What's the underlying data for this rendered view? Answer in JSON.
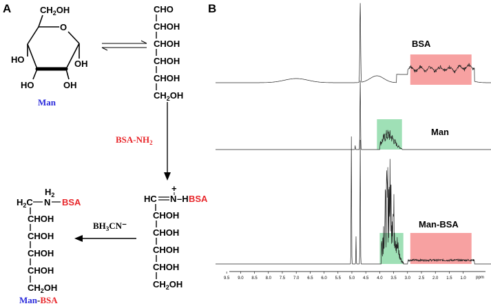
{
  "panels": {
    "a": "A",
    "b": "B"
  },
  "scheme": {
    "man_label": "Man",
    "ring_ch2oh": "CH",
    "ring_oh_sub": "2",
    "ring_oh_tail": "OH",
    "ring_o": "O",
    "ho_left": "HO",
    "oh_right": "OH",
    "ho_bottom": "HO",
    "oh_bottom": "OH",
    "open_chain": [
      "CHO",
      "CHOH",
      "CHOH",
      "CHOH",
      "CHOH",
      "CH2OH"
    ],
    "reagent_bsa_nh2": "BSA-NH",
    "reagent_sub": "2",
    "reagent_reduce": "BH",
    "reagent_reduce_sub": "3",
    "reagent_reduce_tail": "CN⁻",
    "imine_hc": "HC",
    "imine_n": "N",
    "imine_plus": "+",
    "imine_h": "H",
    "imine_bsa": "BSA",
    "imine_chain": [
      "CHOH",
      "CHOH",
      "CHOH",
      "CHOH",
      "CH2OH"
    ],
    "amine_h2c": "H",
    "amine_h2c_sub": "2",
    "amine_h2c_tail": "C",
    "amine_n": "N",
    "amine_h2": "H",
    "amine_h2_sub": "2",
    "amine_bsa": "BSA",
    "amine_chain": [
      "CHOH",
      "CHOH",
      "CHOH",
      "CHOH",
      "CH2OH"
    ],
    "product_man": "Man",
    "product_dash": "-",
    "product_bsa": "BSA"
  },
  "chart_data": {
    "type": "line",
    "title": "",
    "xlabel": "ppm",
    "ylabel": "",
    "xlim": [
      9.9,
      0.0
    ],
    "x_reversed": true,
    "xticks": [
      9.5,
      9.0,
      8.5,
      8.0,
      7.5,
      7.0,
      6.5,
      6.0,
      5.5,
      5.0,
      4.5,
      4.0,
      3.5,
      3.0,
      2.5,
      2.0,
      1.5,
      1.0
    ],
    "xtick_labels": [
      "9.5",
      "9.0",
      "8.5",
      "8.0",
      "7.5",
      "7.0",
      "6.5",
      "6.0",
      "5.5",
      "5.0",
      "4.5",
      "4.0",
      "3.5",
      "3.0",
      "2.5",
      "2.0",
      "1.5",
      "1.0"
    ],
    "series": [
      {
        "name": "BSA",
        "baseline_level": 0.0,
        "peaks_ppm": [
          4.7
        ],
        "broad_region_ppm": [
          0.7,
          2.9
        ]
      },
      {
        "name": "Man",
        "baseline_level": 0.0,
        "peaks_ppm": [
          4.7,
          3.9,
          3.75,
          3.6,
          3.5,
          3.3
        ],
        "region_ppm": [
          3.2,
          4.1
        ]
      },
      {
        "name": "Man-BSA",
        "baseline_level": 0.0,
        "peaks_ppm": [
          5.0,
          4.85,
          4.7,
          3.85,
          3.75,
          3.65,
          3.55,
          3.45,
          3.35
        ],
        "regions_ppm": [
          [
            3.15,
            4.0
          ],
          [
            0.7,
            2.9
          ]
        ]
      }
    ],
    "highlights": [
      {
        "spectrum": "BSA",
        "range_ppm": [
          0.7,
          2.9
        ],
        "color": "#f7a1a1"
      },
      {
        "spectrum": "Man",
        "range_ppm": [
          3.2,
          4.1
        ],
        "color": "#9fe0b6"
      },
      {
        "spectrum": "Man-BSA",
        "range_ppm": [
          3.15,
          4.0
        ],
        "color": "#9fe0b6"
      },
      {
        "spectrum": "Man-BSA",
        "range_ppm": [
          0.7,
          2.9
        ],
        "color": "#f7a1a1"
      }
    ]
  },
  "colors": {
    "red": "#e8262a",
    "blue": "#2a2adb",
    "pink_box": "#f7a1a1",
    "green_box": "#9fe0b6"
  }
}
